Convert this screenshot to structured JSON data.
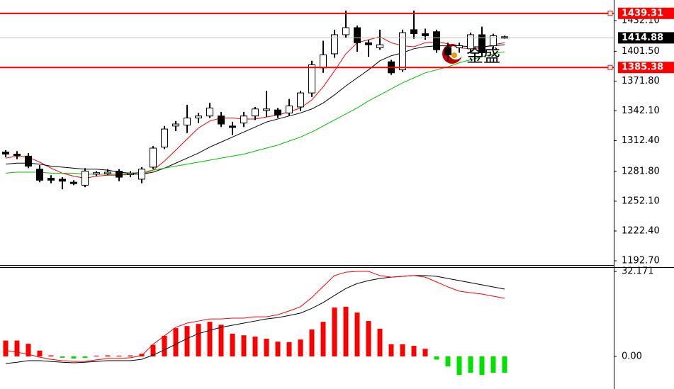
{
  "chart_data": [
    {
      "type": "candlestick",
      "open": [
        1301,
        1299,
        1297,
        1284,
        1275,
        1274,
        1271,
        1268,
        1280,
        1280,
        1282,
        1279,
        1274,
        1286,
        1306,
        1327,
        1328,
        1335,
        1337,
        1337,
        1327,
        1330,
        1337,
        1343,
        1343,
        1340,
        1346,
        1360,
        1385,
        1399,
        1418,
        1425,
        1410,
        1405,
        1391,
        1383,
        1423,
        1419,
        1421,
        1405,
        1405,
        1404,
        1418,
        1407,
        1416
      ],
      "high": [
        1303,
        1302,
        1300,
        1288,
        1278,
        1276,
        1273,
        1285,
        1282,
        1284,
        1284,
        1282,
        1286,
        1307,
        1327,
        1332,
        1348,
        1340,
        1350,
        1341,
        1331,
        1341,
        1346,
        1362,
        1345,
        1354,
        1362,
        1392,
        1412,
        1423,
        1442,
        1427,
        1413,
        1423,
        1393,
        1423,
        1442,
        1424,
        1423,
        1410,
        1410,
        1420,
        1426,
        1419,
        1417
      ],
      "low": [
        1296,
        1294,
        1285,
        1271,
        1270,
        1264,
        1268,
        1266,
        1277,
        1278,
        1272,
        1276,
        1270,
        1284,
        1304,
        1322,
        1320,
        1330,
        1335,
        1326,
        1318,
        1326,
        1333,
        1336,
        1335,
        1337,
        1342,
        1356,
        1380,
        1395,
        1415,
        1401,
        1396,
        1403,
        1378,
        1381,
        1414,
        1413,
        1400,
        1392,
        1400,
        1400,
        1396,
        1404,
        1414
      ],
      "close": [
        1299,
        1298,
        1287,
        1273,
        1273,
        1272,
        1270,
        1282,
        1280.5,
        1281,
        1276,
        1280,
        1284,
        1305,
        1324,
        1329,
        1335,
        1337,
        1345,
        1329,
        1326,
        1337,
        1344,
        1344,
        1338,
        1347,
        1360,
        1388,
        1398,
        1418,
        1425,
        1410,
        1408,
        1408,
        1380,
        1420,
        1419,
        1417,
        1403,
        1398,
        1407,
        1418,
        1400,
        1417,
        1414.88
      ],
      "up_color": "#ffffff",
      "down_color": "#000000",
      "series": [
        {
          "color": "#ff0000",
          "values": [
            1295,
            1297,
            1296,
            1291,
            1285,
            1280,
            1277,
            1275,
            1277,
            1278,
            1278,
            1279,
            1279,
            1283,
            1292,
            1303,
            1314,
            1325,
            1332,
            1335,
            1335,
            1334,
            1334,
            1336,
            1338,
            1341,
            1345,
            1353,
            1366,
            1382,
            1399,
            1410,
            1413,
            1416,
            1410,
            1407,
            1406,
            1410,
            1411,
            1409,
            1405,
            1404,
            1405,
            1408,
            1410
          ]
        },
        {
          "color": "#000000",
          "values": [
            1289,
            1290,
            1290,
            1289,
            1287,
            1286,
            1285,
            1284,
            1284,
            1283,
            1281,
            1280,
            1279,
            1281,
            1285,
            1290,
            1295,
            1300,
            1306,
            1311,
            1316,
            1321,
            1326,
            1331,
            1334,
            1337,
            1340,
            1344,
            1350,
            1358,
            1367,
            1375,
            1383,
            1392,
            1397,
            1400,
            1404,
            1406,
            1407,
            1407,
            1407,
            1406,
            1406,
            1407,
            1408
          ]
        },
        {
          "color": "#00c000",
          "values": [
            1280,
            1281,
            1281,
            1281,
            1280,
            1280,
            1280,
            1279,
            1279,
            1279,
            1279,
            1280,
            1281,
            1283,
            1285,
            1287,
            1289,
            1291,
            1293,
            1295,
            1297,
            1299,
            1302,
            1305,
            1308,
            1312,
            1316,
            1321,
            1327,
            1333,
            1339,
            1345,
            1352,
            1358,
            1364,
            1370,
            1375,
            1380,
            1383,
            1386,
            1390,
            1393,
            1396,
            1399,
            1401
          ]
        }
      ],
      "levels": [
        {
          "value": 1439.31,
          "color": "#ff0000"
        },
        {
          "value": 1385.38,
          "color": "#ff0000"
        },
        {
          "value": 1414.88,
          "color": "#c0c0c0",
          "box_color": "#000000"
        }
      ],
      "ylim": [
        1189.9,
        1452.6
      ],
      "yticks": [
        {
          "value": 1432.1,
          "label": "1432.10"
        },
        {
          "value": 1401.5,
          "label": "1401.50"
        },
        {
          "value": 1371.8,
          "label": "1371.80"
        },
        {
          "value": 1342.1,
          "label": "1342.10"
        },
        {
          "value": 1312.4,
          "label": "1312.40"
        },
        {
          "value": 1281.8,
          "label": "1281.80"
        },
        {
          "value": 1252.1,
          "label": "1252.10"
        },
        {
          "value": 1222.4,
          "label": "1222.40"
        },
        {
          "value": 1192.7,
          "label": "1192.70"
        }
      ],
      "watermark": "金盛"
    },
    {
      "type": "macd",
      "histogram": [
        6.0,
        6.0,
        4.8,
        2.2,
        0.4,
        -0.5,
        -0.8,
        -0.6,
        0.3,
        0.4,
        0.3,
        0.4,
        1.0,
        4.4,
        7.8,
        10.7,
        11.5,
        12.3,
        13.1,
        12.0,
        8.6,
        8.0,
        7.5,
        6.7,
        5.6,
        5.4,
        6.4,
        10.2,
        13.1,
        18.5,
        18.8,
        16.6,
        13.4,
        10.5,
        4.6,
        4.6,
        4.0,
        2.9,
        -1.2,
        -3.8,
        -7.0,
        -6.2,
        -7.0,
        -6.2,
        -6.2
      ],
      "pos_color": "#ff0000",
      "neg_color": "#00e000",
      "series": [
        {
          "color": "#000000",
          "values": [
            -2.7,
            -2.2,
            -1.6,
            -1.6,
            -1.9,
            -2.2,
            -2.4,
            -2.2,
            -1.9,
            -1.6,
            -1.6,
            -1.6,
            -1.1,
            0.5,
            2.5,
            4.6,
            6.8,
            8.6,
            9.9,
            11.0,
            11.8,
            12.6,
            13.4,
            14.2,
            14.7,
            15.5,
            16.4,
            18.2,
            20.4,
            23.1,
            25.7,
            27.6,
            28.7,
            29.5,
            30.0,
            30.3,
            30.6,
            30.6,
            30.3,
            29.5,
            28.7,
            27.9,
            27.1,
            26.3,
            25.5
          ]
        },
        {
          "color": "#ff0000",
          "values": [
            2.2,
            1.6,
            0.8,
            -0.3,
            -1.1,
            -1.6,
            -1.9,
            -1.9,
            -1.3,
            -0.8,
            -0.8,
            -0.5,
            0.3,
            4.6,
            7.8,
            11.0,
            12.6,
            13.4,
            14.2,
            14.2,
            14.5,
            14.5,
            15.0,
            15.0,
            15.8,
            17.2,
            18.8,
            22.3,
            26.5,
            30.6,
            31.9,
            32.2,
            32.2,
            30.6,
            30.0,
            30.3,
            30.6,
            30.0,
            28.2,
            26.3,
            24.7,
            24.1,
            23.6,
            22.8,
            22.0
          ]
        }
      ],
      "ylim": [
        -11.26,
        33.8
      ],
      "yticks": [
        {
          "value": 32.171,
          "label": "32.171"
        },
        {
          "value": 0,
          "label": "0.00"
        }
      ]
    }
  ]
}
